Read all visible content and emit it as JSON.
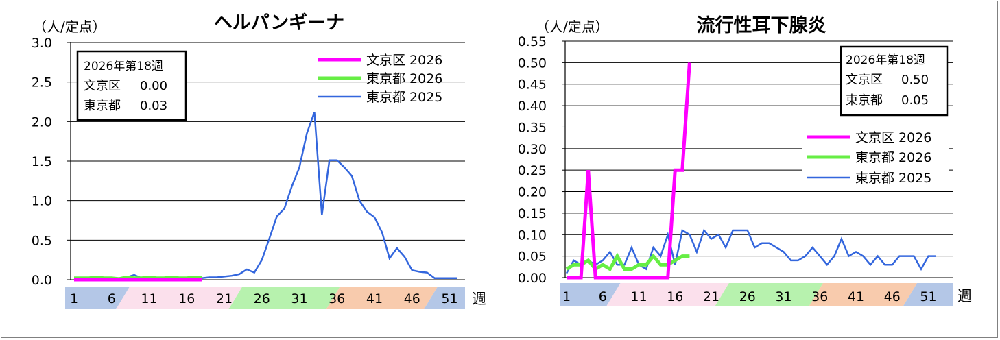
{
  "chart_data": [
    {
      "type": "line",
      "title": "ヘルパンギーナ",
      "ylabel": "（人/定点）",
      "xlabel": "週",
      "ylim": [
        0,
        3.0
      ],
      "yticks": [
        "0.0",
        "0.5",
        "1.0",
        "1.5",
        "2.0",
        "2.5",
        "3.0"
      ],
      "xtick_labels": [
        "1",
        "6",
        "11",
        "16",
        "21",
        "26",
        "31",
        "36",
        "41",
        "46",
        "51"
      ],
      "grid": true,
      "legend_position": "top-right",
      "info_box": {
        "title": "2026年第18週",
        "rows": [
          {
            "label": "文京区",
            "value": "0.00"
          },
          {
            "label": "東京都",
            "value": "0.03"
          }
        ]
      },
      "series": [
        {
          "name": "文京区 2026",
          "color": "#ff00ff",
          "x": [
            1,
            2,
            3,
            4,
            5,
            6,
            7,
            8,
            9,
            10,
            11,
            12,
            13,
            14,
            15,
            16,
            17,
            18
          ],
          "values": [
            0,
            0,
            0,
            0,
            0,
            0,
            0,
            0,
            0,
            0,
            0,
            0,
            0,
            0,
            0,
            0,
            0,
            0
          ]
        },
        {
          "name": "東京都 2026",
          "color": "#66ee44",
          "x": [
            1,
            2,
            3,
            4,
            5,
            6,
            7,
            8,
            9,
            10,
            11,
            12,
            13,
            14,
            15,
            16,
            17,
            18
          ],
          "values": [
            0.02,
            0.02,
            0.02,
            0.03,
            0.02,
            0.02,
            0.01,
            0.03,
            0.02,
            0.02,
            0.03,
            0.02,
            0.02,
            0.03,
            0.02,
            0.02,
            0.03,
            0.03
          ]
        },
        {
          "name": "東京都 2025",
          "color": "#3366dd",
          "x": [
            1,
            2,
            3,
            4,
            5,
            6,
            7,
            8,
            9,
            10,
            11,
            12,
            13,
            14,
            15,
            16,
            17,
            18,
            19,
            20,
            21,
            22,
            23,
            24,
            25,
            26,
            27,
            28,
            29,
            30,
            31,
            32,
            33,
            34,
            35,
            36,
            37,
            38,
            39,
            40,
            41,
            42,
            43,
            44,
            45,
            46,
            47,
            48,
            49,
            50,
            51,
            52
          ],
          "values": [
            0.01,
            0.02,
            0.02,
            0.02,
            0.01,
            0.01,
            0.01,
            0.03,
            0.06,
            0.02,
            0.02,
            0.01,
            0.02,
            0.02,
            0.02,
            0.01,
            0.02,
            0.02,
            0.03,
            0.03,
            0.04,
            0.05,
            0.07,
            0.13,
            0.09,
            0.25,
            0.52,
            0.8,
            0.9,
            1.18,
            1.42,
            1.85,
            2.12,
            0.82,
            1.51,
            1.51,
            1.42,
            1.31,
            1.0,
            0.86,
            0.79,
            0.6,
            0.27,
            0.4,
            0.29,
            0.12,
            0.1,
            0.09,
            0.02,
            0.02,
            0.02,
            0.02
          ]
        }
      ]
    },
    {
      "type": "line",
      "title": "流行性耳下腺炎",
      "ylabel": "（人/定点）",
      "xlabel": "週",
      "ylim": [
        0,
        0.55
      ],
      "yticks": [
        "0.00",
        "0.05",
        "0.10",
        "0.15",
        "0.20",
        "0.25",
        "0.30",
        "0.35",
        "0.40",
        "0.45",
        "0.50",
        "0.55"
      ],
      "xtick_labels": [
        "1",
        "6",
        "11",
        "16",
        "21",
        "26",
        "31",
        "36",
        "41",
        "46",
        "51"
      ],
      "grid": true,
      "legend_position": "right",
      "info_box": {
        "title": "2026年第18週",
        "rows": [
          {
            "label": "文京区",
            "value": "0.50"
          },
          {
            "label": "東京都",
            "value": "0.05"
          }
        ]
      },
      "series": [
        {
          "name": "文京区 2026",
          "color": "#ff00ff",
          "x": [
            1,
            2,
            3,
            4,
            5,
            6,
            7,
            8,
            9,
            10,
            11,
            12,
            13,
            14,
            15,
            16,
            17,
            18
          ],
          "values": [
            0,
            0,
            0,
            0.25,
            0,
            0,
            0,
            0,
            0,
            0,
            0,
            0,
            0,
            0,
            0,
            0.25,
            0.25,
            0.5
          ]
        },
        {
          "name": "東京都 2026",
          "color": "#66ee44",
          "x": [
            1,
            2,
            3,
            4,
            5,
            6,
            7,
            8,
            9,
            10,
            11,
            12,
            13,
            14,
            15,
            16,
            17,
            18
          ],
          "values": [
            0.02,
            0.03,
            0.03,
            0.04,
            0.02,
            0.03,
            0.02,
            0.05,
            0.02,
            0.02,
            0.03,
            0.03,
            0.05,
            0.03,
            0.03,
            0.04,
            0.05,
            0.05
          ]
        },
        {
          "name": "東京都 2025",
          "color": "#3366dd",
          "x": [
            1,
            2,
            3,
            4,
            5,
            6,
            7,
            8,
            9,
            10,
            11,
            12,
            13,
            14,
            15,
            16,
            17,
            18,
            19,
            20,
            21,
            22,
            23,
            24,
            25,
            26,
            27,
            28,
            29,
            30,
            31,
            32,
            33,
            34,
            35,
            36,
            37,
            38,
            39,
            40,
            41,
            42,
            43,
            44,
            45,
            46,
            47,
            48,
            49,
            50,
            51,
            52
          ],
          "values": [
            0.01,
            0.04,
            0.03,
            0.04,
            0.03,
            0.04,
            0.06,
            0.03,
            0.03,
            0.07,
            0.03,
            0.02,
            0.07,
            0.05,
            0.1,
            0.03,
            0.11,
            0.1,
            0.06,
            0.11,
            0.09,
            0.1,
            0.07,
            0.11,
            0.11,
            0.11,
            0.07,
            0.08,
            0.08,
            0.07,
            0.06,
            0.04,
            0.04,
            0.05,
            0.07,
            0.05,
            0.03,
            0.05,
            0.09,
            0.05,
            0.06,
            0.05,
            0.03,
            0.05,
            0.03,
            0.03,
            0.05,
            0.05,
            0.05,
            0.02,
            0.05,
            0.05
          ]
        }
      ]
    }
  ]
}
